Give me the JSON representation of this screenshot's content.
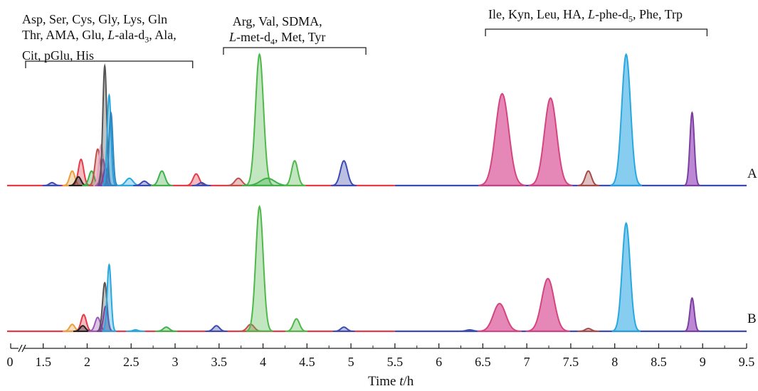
{
  "chart_data": {
    "type": "line",
    "xlabel_prefix": "Time ",
    "xlabel_var": "t",
    "xlabel_unit": "/h",
    "x_ticks": [
      "0",
      "1.5",
      "2",
      "2.5",
      "3",
      "3.5",
      "4",
      "4.5",
      "5",
      "5.5",
      "6",
      "6.5",
      "7",
      "7.5",
      "8",
      "8.5",
      "9",
      "9.5"
    ],
    "xlim": [
      1.3,
      9.5
    ],
    "axis_break": "//",
    "traces": [
      {
        "name": "A",
        "peaks": [
          {
            "x": 1.6,
            "h": 0.02,
            "w": 0.03,
            "color": "#3b4bb0"
          },
          {
            "x": 1.83,
            "h": 0.1,
            "w": 0.03,
            "color": "#e9a040"
          },
          {
            "x": 1.93,
            "h": 0.18,
            "w": 0.03,
            "color": "#e33c4a"
          },
          {
            "x": 1.9,
            "h": 0.06,
            "w": 0.03,
            "color": "#222222"
          },
          {
            "x": 2.05,
            "h": 0.1,
            "w": 0.03,
            "color": "#3fb04a"
          },
          {
            "x": 2.12,
            "h": 0.25,
            "w": 0.03,
            "color": "#c0504d"
          },
          {
            "x": 2.16,
            "h": 0.28,
            "w": 0.025,
            "color": "#e8a1c4"
          },
          {
            "x": 2.18,
            "h": 0.18,
            "w": 0.025,
            "color": "#9b59b6"
          },
          {
            "x": 2.2,
            "h": 0.82,
            "w": 0.022,
            "color": "#555555"
          },
          {
            "x": 2.21,
            "h": 0.12,
            "w": 0.025,
            "color": "#7b3fa0"
          },
          {
            "x": 2.25,
            "h": 0.62,
            "w": 0.022,
            "color": "#29a8e0"
          },
          {
            "x": 2.27,
            "h": 0.5,
            "w": 0.022,
            "color": "#2e86c1"
          },
          {
            "x": 2.48,
            "h": 0.05,
            "w": 0.04,
            "color": "#29a8e0"
          },
          {
            "x": 2.65,
            "h": 0.03,
            "w": 0.035,
            "color": "#3b4bb0"
          },
          {
            "x": 2.85,
            "h": 0.1,
            "w": 0.035,
            "color": "#3fb04a"
          },
          {
            "x": 3.24,
            "h": 0.08,
            "w": 0.035,
            "color": "#e33c4a"
          },
          {
            "x": 3.3,
            "h": 0.02,
            "w": 0.03,
            "color": "#3b4bb0"
          },
          {
            "x": 3.72,
            "h": 0.05,
            "w": 0.04,
            "color": "#c0504d"
          },
          {
            "x": 3.96,
            "h": 0.9,
            "w": 0.045,
            "color": "#4fb84a"
          },
          {
            "x": 4.05,
            "h": 0.05,
            "w": 0.08,
            "color": "#3fb04a"
          },
          {
            "x": 4.36,
            "h": 0.17,
            "w": 0.035,
            "color": "#4fb84a"
          },
          {
            "x": 4.92,
            "h": 0.17,
            "w": 0.04,
            "color": "#3b4bb0"
          },
          {
            "x": 6.72,
            "h": 0.63,
            "w": 0.075,
            "color": "#d4457f",
            "fill": "#e27bb0"
          },
          {
            "x": 7.27,
            "h": 0.6,
            "w": 0.07,
            "color": "#d4457f",
            "fill": "#e27bb0"
          },
          {
            "x": 7.7,
            "h": 0.1,
            "w": 0.035,
            "color": "#a54a4a"
          },
          {
            "x": 8.13,
            "h": 0.9,
            "w": 0.05,
            "color": "#29a8e0",
            "fill": "#79c8ee"
          },
          {
            "x": 8.88,
            "h": 0.5,
            "w": 0.025,
            "color": "#7b3fa0",
            "fill": "#b57bd0"
          }
        ]
      },
      {
        "name": "B",
        "peaks": [
          {
            "x": 1.83,
            "h": 0.05,
            "w": 0.03,
            "color": "#e9a040"
          },
          {
            "x": 1.96,
            "h": 0.12,
            "w": 0.03,
            "color": "#e33c4a"
          },
          {
            "x": 1.95,
            "h": 0.04,
            "w": 0.03,
            "color": "#222222"
          },
          {
            "x": 2.12,
            "h": 0.1,
            "w": 0.03,
            "color": "#9b59b6"
          },
          {
            "x": 2.2,
            "h": 0.35,
            "w": 0.025,
            "color": "#555555"
          },
          {
            "x": 2.21,
            "h": 0.18,
            "w": 0.025,
            "color": "#7b3fa0"
          },
          {
            "x": 2.25,
            "h": 0.48,
            "w": 0.022,
            "color": "#29a8e0"
          },
          {
            "x": 2.55,
            "h": 0.01,
            "w": 0.03,
            "color": "#29a8e0"
          },
          {
            "x": 2.9,
            "h": 0.03,
            "w": 0.035,
            "color": "#3fb04a"
          },
          {
            "x": 3.47,
            "h": 0.04,
            "w": 0.035,
            "color": "#3b4bb0"
          },
          {
            "x": 3.86,
            "h": 0.05,
            "w": 0.04,
            "color": "#c0504d"
          },
          {
            "x": 3.96,
            "h": 0.9,
            "w": 0.042,
            "color": "#4fb84a"
          },
          {
            "x": 4.38,
            "h": 0.09,
            "w": 0.035,
            "color": "#4fb84a"
          },
          {
            "x": 4.92,
            "h": 0.03,
            "w": 0.035,
            "color": "#3b4bb0"
          },
          {
            "x": 6.35,
            "h": 0.01,
            "w": 0.04,
            "color": "#3b4bb0"
          },
          {
            "x": 6.69,
            "h": 0.2,
            "w": 0.07,
            "color": "#d4457f",
            "fill": "#e27bb0"
          },
          {
            "x": 7.24,
            "h": 0.38,
            "w": 0.07,
            "color": "#d4457f",
            "fill": "#e27bb0"
          },
          {
            "x": 7.7,
            "h": 0.02,
            "w": 0.035,
            "color": "#a54a4a"
          },
          {
            "x": 8.13,
            "h": 0.78,
            "w": 0.045,
            "color": "#29a8e0",
            "fill": "#79c8ee"
          },
          {
            "x": 8.88,
            "h": 0.24,
            "w": 0.025,
            "color": "#7b3fa0",
            "fill": "#b57bd0"
          }
        ]
      }
    ],
    "baseline_colors": [
      "#e33c4a",
      "#3b4bb0"
    ],
    "baseline_switch_x": 5.5,
    "groups": [
      {
        "lines": [
          "Asp, Ser, Cys, Gly, Lys, Gln",
          "Thr, AMA, Glu, ",
          "-ala-d",
          "3",
          ", Ala,",
          "Cit, pGlu, His"
        ],
        "range": [
          1.3,
          3.2
        ]
      },
      {
        "lines": [
          "Arg, Val, SDMA,",
          "-met-d",
          "4",
          ", Met, Tyr"
        ],
        "range": [
          3.55,
          5.17
        ]
      },
      {
        "lines": [
          "Ile, Kyn, Leu, HA, ",
          "-phe-d",
          "5",
          ", Phe, Trp"
        ],
        "range": [
          6.53,
          9.05
        ]
      }
    ],
    "italic_prefix": "L"
  }
}
